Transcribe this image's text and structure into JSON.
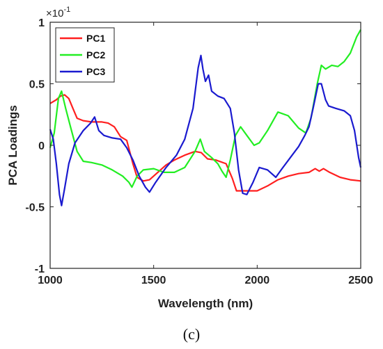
{
  "caption": "(c)",
  "chart_data": {
    "type": "line",
    "xlabel": "Wavelength (nm)",
    "ylabel": "PCA Loadings",
    "exponent_label": "×10",
    "exponent_power": "-1",
    "xlim": [
      1000,
      2500
    ],
    "ylim": [
      -1,
      1
    ],
    "xticks": [
      1000,
      1500,
      2000,
      2500
    ],
    "xtick_labels": [
      "1000",
      "1500",
      "2000",
      "2500"
    ],
    "yticks": [
      1,
      0.5,
      0,
      -0.5,
      -1
    ],
    "ytick_labels": [
      "1",
      "0.5",
      "0",
      "-0.5",
      "-1"
    ],
    "grid": false,
    "legend_position": "top-left",
    "series": [
      {
        "name": "PC1",
        "color": "#ff1f1f",
        "points": [
          [
            1000,
            0.34
          ],
          [
            1030,
            0.37
          ],
          [
            1050,
            0.4
          ],
          [
            1070,
            0.41
          ],
          [
            1090,
            0.38
          ],
          [
            1110,
            0.3
          ],
          [
            1130,
            0.22
          ],
          [
            1160,
            0.2
          ],
          [
            1200,
            0.19
          ],
          [
            1250,
            0.19
          ],
          [
            1280,
            0.18
          ],
          [
            1310,
            0.15
          ],
          [
            1340,
            0.07
          ],
          [
            1370,
            0.04
          ],
          [
            1400,
            -0.15
          ],
          [
            1420,
            -0.26
          ],
          [
            1450,
            -0.29
          ],
          [
            1480,
            -0.28
          ],
          [
            1520,
            -0.22
          ],
          [
            1560,
            -0.16
          ],
          [
            1600,
            -0.12
          ],
          [
            1650,
            -0.08
          ],
          [
            1700,
            -0.05
          ],
          [
            1730,
            -0.06
          ],
          [
            1760,
            -0.11
          ],
          [
            1800,
            -0.12
          ],
          [
            1850,
            -0.15
          ],
          [
            1880,
            -0.27
          ],
          [
            1900,
            -0.37
          ],
          [
            1950,
            -0.37
          ],
          [
            2000,
            -0.37
          ],
          [
            2050,
            -0.33
          ],
          [
            2100,
            -0.28
          ],
          [
            2150,
            -0.25
          ],
          [
            2200,
            -0.23
          ],
          [
            2250,
            -0.22
          ],
          [
            2280,
            -0.19
          ],
          [
            2300,
            -0.21
          ],
          [
            2320,
            -0.19
          ],
          [
            2350,
            -0.22
          ],
          [
            2400,
            -0.26
          ],
          [
            2450,
            -0.28
          ],
          [
            2500,
            -0.29
          ]
        ]
      },
      {
        "name": "PC2",
        "color": "#22ee22",
        "points": [
          [
            1000,
            -0.02
          ],
          [
            1020,
            0.1
          ],
          [
            1040,
            0.38
          ],
          [
            1055,
            0.44
          ],
          [
            1075,
            0.3
          ],
          [
            1100,
            0.14
          ],
          [
            1130,
            -0.05
          ],
          [
            1160,
            -0.13
          ],
          [
            1200,
            -0.14
          ],
          [
            1250,
            -0.16
          ],
          [
            1300,
            -0.2
          ],
          [
            1350,
            -0.25
          ],
          [
            1380,
            -0.3
          ],
          [
            1395,
            -0.34
          ],
          [
            1420,
            -0.25
          ],
          [
            1450,
            -0.2
          ],
          [
            1500,
            -0.19
          ],
          [
            1550,
            -0.22
          ],
          [
            1600,
            -0.22
          ],
          [
            1650,
            -0.18
          ],
          [
            1700,
            -0.05
          ],
          [
            1725,
            0.05
          ],
          [
            1745,
            -0.05
          ],
          [
            1780,
            -0.1
          ],
          [
            1810,
            -0.15
          ],
          [
            1830,
            -0.21
          ],
          [
            1850,
            -0.26
          ],
          [
            1870,
            -0.12
          ],
          [
            1895,
            0.08
          ],
          [
            1920,
            0.15
          ],
          [
            1950,
            0.08
          ],
          [
            1985,
            0.0
          ],
          [
            2010,
            0.02
          ],
          [
            2050,
            0.12
          ],
          [
            2100,
            0.27
          ],
          [
            2150,
            0.24
          ],
          [
            2200,
            0.14
          ],
          [
            2235,
            0.1
          ],
          [
            2260,
            0.22
          ],
          [
            2290,
            0.5
          ],
          [
            2310,
            0.65
          ],
          [
            2330,
            0.62
          ],
          [
            2360,
            0.65
          ],
          [
            2390,
            0.64
          ],
          [
            2420,
            0.68
          ],
          [
            2450,
            0.75
          ],
          [
            2480,
            0.88
          ],
          [
            2500,
            0.94
          ]
        ]
      },
      {
        "name": "PC3",
        "color": "#1a1acf",
        "points": [
          [
            1000,
            0.13
          ],
          [
            1015,
            0.05
          ],
          [
            1030,
            -0.15
          ],
          [
            1045,
            -0.4
          ],
          [
            1055,
            -0.49
          ],
          [
            1070,
            -0.35
          ],
          [
            1090,
            -0.15
          ],
          [
            1120,
            0.02
          ],
          [
            1160,
            0.12
          ],
          [
            1195,
            0.18
          ],
          [
            1215,
            0.23
          ],
          [
            1235,
            0.12
          ],
          [
            1260,
            0.08
          ],
          [
            1300,
            0.06
          ],
          [
            1340,
            0.05
          ],
          [
            1370,
            -0.02
          ],
          [
            1400,
            -0.12
          ],
          [
            1430,
            -0.25
          ],
          [
            1460,
            -0.34
          ],
          [
            1480,
            -0.38
          ],
          [
            1510,
            -0.3
          ],
          [
            1560,
            -0.18
          ],
          [
            1610,
            -0.08
          ],
          [
            1650,
            0.05
          ],
          [
            1690,
            0.3
          ],
          [
            1715,
            0.63
          ],
          [
            1728,
            0.73
          ],
          [
            1738,
            0.62
          ],
          [
            1750,
            0.52
          ],
          [
            1765,
            0.57
          ],
          [
            1780,
            0.44
          ],
          [
            1810,
            0.4
          ],
          [
            1840,
            0.38
          ],
          [
            1870,
            0.3
          ],
          [
            1890,
            0.1
          ],
          [
            1910,
            -0.2
          ],
          [
            1930,
            -0.39
          ],
          [
            1950,
            -0.4
          ],
          [
            1980,
            -0.3
          ],
          [
            2010,
            -0.18
          ],
          [
            2050,
            -0.2
          ],
          [
            2090,
            -0.26
          ],
          [
            2120,
            -0.19
          ],
          [
            2160,
            -0.1
          ],
          [
            2200,
            -0.01
          ],
          [
            2230,
            0.08
          ],
          [
            2250,
            0.15
          ],
          [
            2270,
            0.3
          ],
          [
            2295,
            0.5
          ],
          [
            2310,
            0.5
          ],
          [
            2330,
            0.37
          ],
          [
            2345,
            0.32
          ],
          [
            2380,
            0.3
          ],
          [
            2420,
            0.28
          ],
          [
            2450,
            0.24
          ],
          [
            2470,
            0.12
          ],
          [
            2490,
            -0.1
          ],
          [
            2500,
            -0.18
          ]
        ]
      }
    ]
  }
}
